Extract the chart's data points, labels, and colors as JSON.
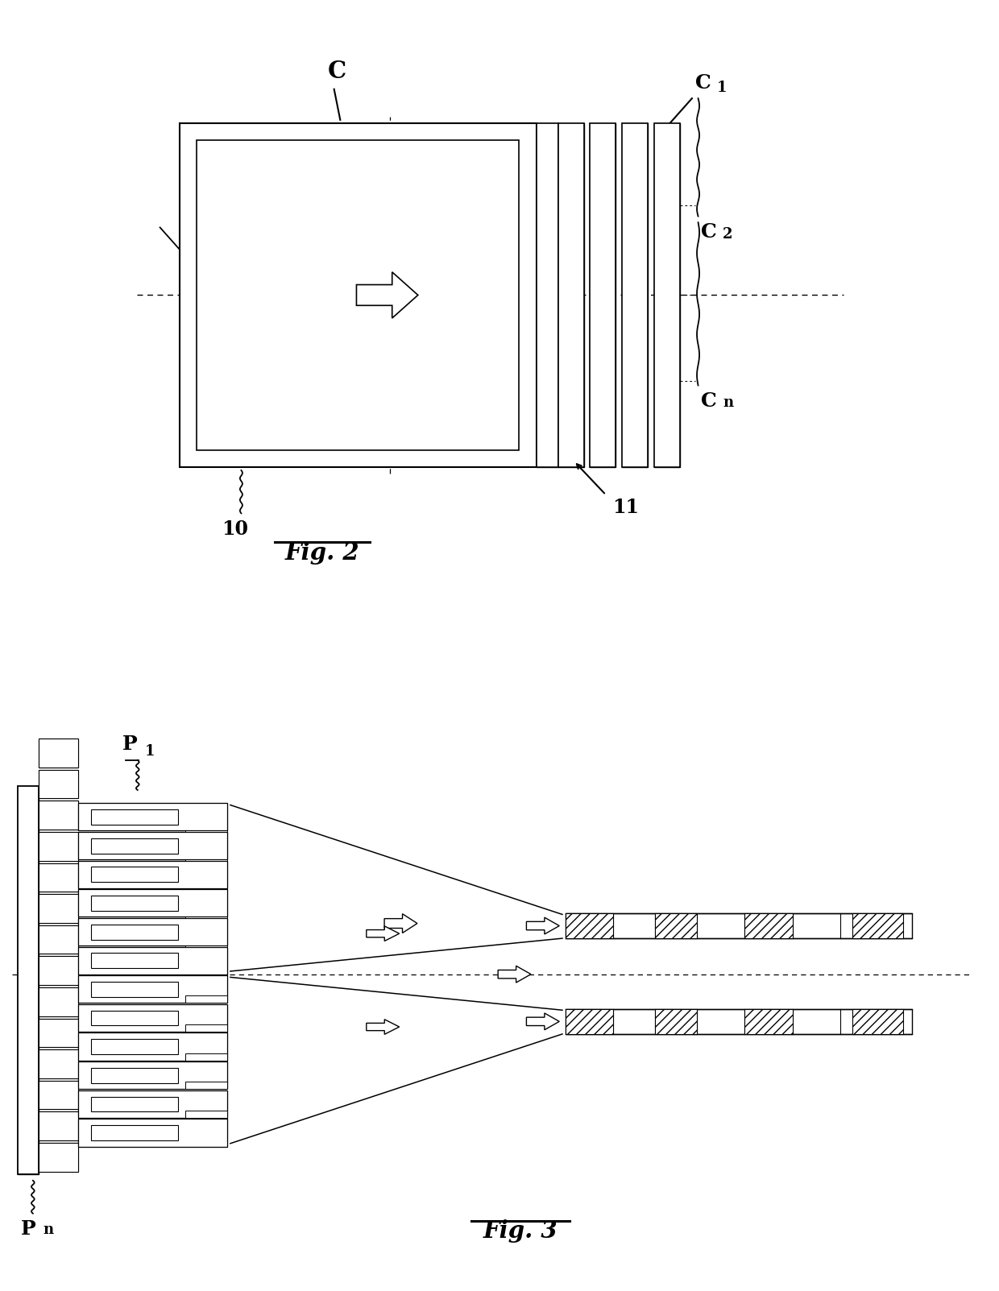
{
  "bg": "#ffffff",
  "lc": "#000000",
  "fig2_title": "Fig. 2",
  "fig3_title": "Fig. 3",
  "hatch": "///",
  "label_C": "C",
  "label_C1": "C",
  "label_C1_sub": "1",
  "label_C2": "C",
  "label_C2_sub": "2",
  "label_Cn": "C",
  "label_Cn_sub": "n",
  "label_10": "10",
  "label_11": "11",
  "label_P1": "P",
  "label_P1_sub": "1",
  "label_Pn": "P",
  "label_Pn_sub": "n"
}
